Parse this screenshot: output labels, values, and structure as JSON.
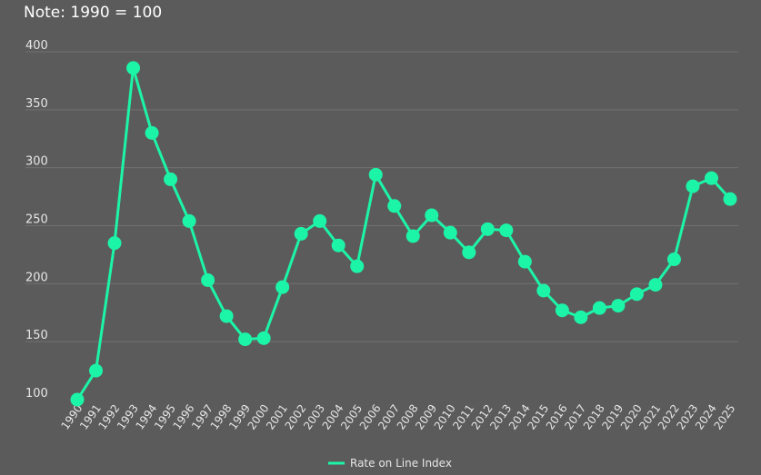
{
  "note": "Note: 1990 = 100",
  "chart_data": {
    "type": "line",
    "title": "",
    "xlabel": "",
    "ylabel": "",
    "ylim": [
      100,
      400
    ],
    "y_ticks": [
      100,
      150,
      200,
      250,
      300,
      350,
      400
    ],
    "grid": true,
    "legend_position": "bottom-center",
    "categories": [
      "1990",
      "1991",
      "1992",
      "1993",
      "1994",
      "1995",
      "1996",
      "1997",
      "1998",
      "1999",
      "2000",
      "2001",
      "2002",
      "2003",
      "2004",
      "2005",
      "2006",
      "2007",
      "2008",
      "2009",
      "2010",
      "2011",
      "2012",
      "2013",
      "2014",
      "2015",
      "2016",
      "2017",
      "2018",
      "2019",
      "2020",
      "2021",
      "2022",
      "2023",
      "2024",
      "2025"
    ],
    "series": [
      {
        "name": "Rate on Line Index",
        "color": "#1cf5a8",
        "values": [
          100,
          125,
          235,
          386,
          330,
          290,
          254,
          203,
          172,
          152,
          153,
          197,
          243,
          254,
          233,
          215,
          294,
          267,
          241,
          259,
          244,
          227,
          247,
          246,
          219,
          194,
          177,
          171,
          179,
          181,
          191,
          199,
          221,
          284,
          291,
          273
        ]
      }
    ]
  }
}
